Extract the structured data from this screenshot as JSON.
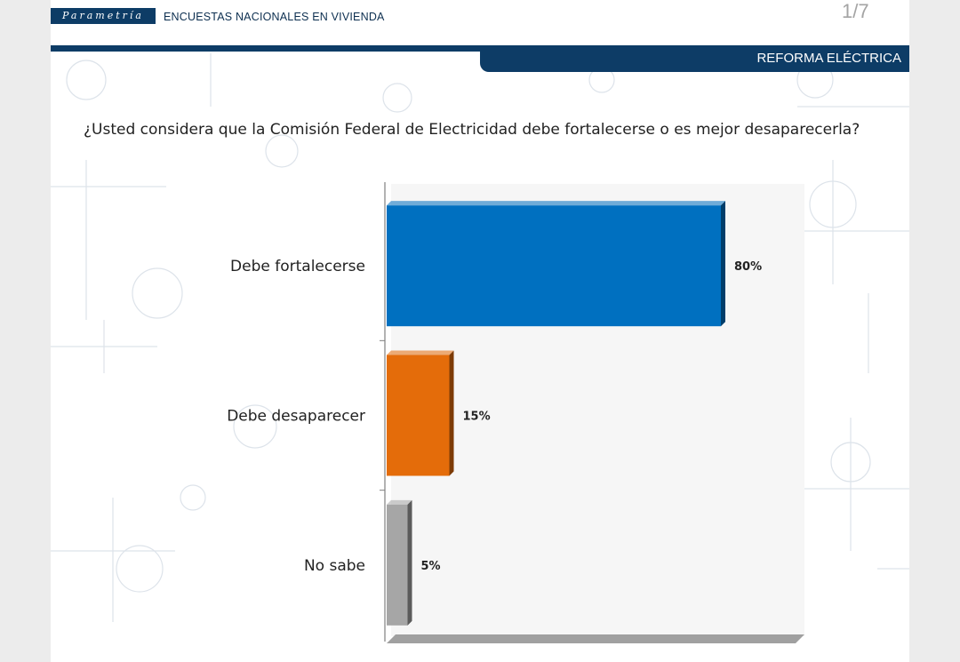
{
  "header": {
    "logo_text": "Parametría",
    "survey_title": "ENCUESTAS NACIONALES EN VIVIENDA",
    "page_number": "1/7",
    "section_title": "REFORMA ELÉCTRICA"
  },
  "question": "¿Usted considera que la Comisión Federal de Electricidad debe fortalecerse o es mejor desaparecerla?",
  "colors": {
    "brand_navy": "#0d3c66",
    "bar_blue": "#0070c0",
    "bar_orange": "#e46c0a",
    "bar_gray": "#a6a6a6"
  },
  "chart_data": {
    "type": "bar",
    "orientation": "horizontal",
    "categories": [
      "Debe fortalecerse",
      "Debe desaparecer",
      "No sabe"
    ],
    "values": [
      80,
      15,
      5
    ],
    "value_labels": [
      "80%",
      "15%",
      "5%"
    ],
    "colors": [
      "#0070c0",
      "#e46c0a",
      "#a6a6a6"
    ],
    "xlim": [
      0,
      100
    ],
    "grid": false,
    "legend": "none"
  }
}
